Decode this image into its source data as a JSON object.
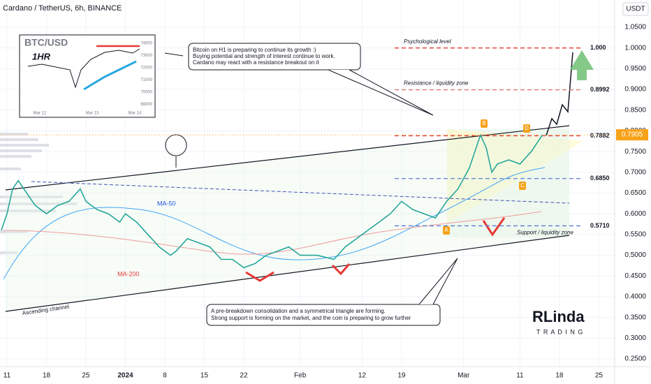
{
  "header": {
    "symbol": "Cardano / TetherUS, 6h, BINANCE",
    "currency": "USDT"
  },
  "chart_data": {
    "type": "line",
    "color": "#26a69a",
    "x": [
      -1,
      0,
      1,
      2,
      3,
      5,
      7,
      9,
      11,
      13,
      14,
      16,
      18,
      20,
      21,
      23,
      25,
      27,
      29,
      30,
      32,
      34,
      36,
      38,
      40,
      42,
      44,
      46,
      48,
      50,
      52,
      55,
      58,
      60,
      62,
      64,
      66,
      68,
      70,
      72,
      74,
      76,
      78,
      80,
      82,
      84,
      85,
      86,
      87,
      89,
      91,
      93,
      95
    ],
    "values": [
      0.56,
      0.6,
      0.66,
      0.68,
      0.66,
      0.62,
      0.6,
      0.62,
      0.63,
      0.66,
      0.63,
      0.61,
      0.6,
      0.58,
      0.6,
      0.58,
      0.55,
      0.52,
      0.5,
      0.51,
      0.54,
      0.53,
      0.52,
      0.49,
      0.49,
      0.47,
      0.48,
      0.5,
      0.51,
      0.52,
      0.5,
      0.5,
      0.49,
      0.52,
      0.54,
      0.56,
      0.58,
      0.6,
      0.63,
      0.61,
      0.6,
      0.59,
      0.63,
      0.66,
      0.71,
      0.79,
      0.76,
      0.7,
      0.72,
      0.73,
      0.72,
      0.75,
      0.7905
    ],
    "xlim": [
      -1.24,
      107.8
    ],
    "xticks": [
      {
        "value": 0,
        "label": "11"
      },
      {
        "value": 7,
        "label": "18"
      },
      {
        "value": 14,
        "label": "25"
      },
      {
        "value": 21,
        "label": "2024"
      },
      {
        "value": 28,
        "label": "8"
      },
      {
        "value": 35,
        "label": "15"
      },
      {
        "value": 42,
        "label": "22"
      },
      {
        "value": 52,
        "label": "Feb"
      },
      {
        "value": 63,
        "label": "12"
      },
      {
        "value": 70,
        "label": "19"
      },
      {
        "value": 81,
        "label": "Mar"
      },
      {
        "value": 91,
        "label": "11"
      },
      {
        "value": 98,
        "label": "18"
      },
      {
        "value": 105,
        "label": "25"
      }
    ],
    "ylim": [
      0.2315,
      1.1157
    ],
    "yticks": [
      {
        "value": 0.25,
        "label": "0.2500"
      },
      {
        "value": 0.3,
        "label": "0.3000"
      },
      {
        "value": 0.35,
        "label": "0.3500"
      },
      {
        "value": 0.4,
        "label": "0.4000"
      },
      {
        "value": 0.45,
        "label": "0.4500"
      },
      {
        "value": 0.5,
        "label": "0.5000"
      },
      {
        "value": 0.55,
        "label": "0.5500"
      },
      {
        "value": 0.6,
        "label": "0.6000"
      },
      {
        "value": 0.65,
        "label": "0.6500"
      },
      {
        "value": 0.7,
        "label": "0.7000"
      },
      {
        "value": 0.75,
        "label": "0.7500"
      },
      {
        "value": 0.8,
        "label": "0.8000"
      },
      {
        "value": 0.85,
        "label": "0.8500"
      },
      {
        "value": 0.9,
        "label": "0.9000"
      },
      {
        "value": 0.95,
        "label": "0.9500"
      },
      {
        "value": 1,
        "label": "1.0000"
      },
      {
        "value": 1.05,
        "label": "1.0500"
      }
    ],
    "grid": true,
    "current_price": 0.7905,
    "levels": [
      {
        "value": 1,
        "label": "1.000",
        "name": "Psychological level",
        "color": "#e53935"
      },
      {
        "value": 0.8992,
        "name": "Resistance / liquidity zone",
        "color": "#e57373"
      },
      {
        "value": 0.7882,
        "color": "#e53935"
      },
      {
        "value": 0.685,
        "label": "0.6850",
        "color": "#5b7ad6"
      },
      {
        "value": 0.571,
        "label": "0.5710",
        "name": "Support / liquidity zone",
        "color": "#5b7ad6"
      }
    ],
    "annotations": {
      "btc_note": [
        "Bitcoin on H1 is preparing to continue its growth :)",
        "Buying potential and strength of interest continue to work.",
        "Cardano may react with a resistance breakout on it"
      ],
      "bottom_note": [
        "A pre-breakdown consolidation and a symmetrical triangle are forming.",
        "Strong support is forming on the market, and the coin is preparing to grow further"
      ],
      "channel": "Ascending channel",
      "ma50": "MA-50",
      "ma200": "MA-200",
      "points": [
        "A",
        "B",
        "C",
        "D"
      ]
    }
  },
  "inset": {
    "title": "BTC/USD",
    "timeframe": "1HR",
    "yticks": [
      "74000",
      "73000",
      "72000",
      "71000",
      "70000",
      "69000"
    ],
    "xlabels": [
      "Mar 12",
      "Mar 13",
      "Mar 14"
    ]
  },
  "logo": {
    "brand": "RLinda",
    "sub": "T R A D I N G"
  }
}
